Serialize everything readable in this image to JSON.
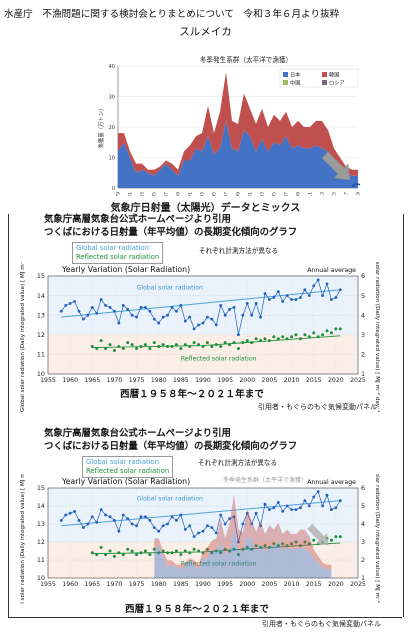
{
  "header": {
    "title": "水産庁　不漁問題に関する検討会とりまとめについて　令和３年６月より抜粋",
    "species": "スルメイカ"
  },
  "mix_title": "気象庁日射量（太陽光）データとミックス",
  "source_text": {
    "line1": "気象庁高層気象台公式ホームページより引用",
    "line2": "つくばにおける日射量（年平均値）の長期変化傾向のグラフ",
    "global_label": "Global solar radiation",
    "reflected_label": "Reflected solar radiation",
    "method_note": "それぞれ計測方法が異なる",
    "period": "西暦１９５８年〜２０２１年まで",
    "credit": "引用者・もぐらのもぐ気候変動パネル"
  },
  "chart_data": [
    {
      "type": "area",
      "title": "冬季発生系群（太平洋で漁獲）",
      "ylabel": "漁獲量（万トン）",
      "ylim": [
        0,
        40
      ],
      "yticks": [
        0,
        10,
        20,
        30,
        40
      ],
      "x": [
        1979,
        1980,
        1981,
        1982,
        1983,
        1984,
        1985,
        1986,
        1987,
        1988,
        1989,
        1990,
        1991,
        1992,
        1993,
        1994,
        1995,
        1996,
        1997,
        1998,
        1999,
        2000,
        2001,
        2002,
        2003,
        2004,
        2005,
        2006,
        2007,
        2008,
        2009,
        2010,
        2011,
        2012,
        2013,
        2014,
        2015,
        2016,
        2017,
        2018,
        2019
      ],
      "xtick_labels": [
        "1979",
        "1981",
        "1983",
        "1985",
        "1987",
        "1989",
        "1991",
        "1993",
        "1995",
        "1997",
        "1999",
        "2001",
        "2003",
        "2005",
        "2007",
        "2009",
        "2011",
        "2013",
        "2015",
        "2017",
        "2019"
      ],
      "series": [
        {
          "name": "日本",
          "color": "#4472c4",
          "values": [
            12,
            15,
            10,
            5,
            6,
            5,
            4,
            6,
            8,
            6,
            4,
            9,
            9,
            13,
            12,
            17,
            11,
            13,
            22,
            13,
            12,
            19,
            17,
            12,
            16,
            12,
            15,
            14,
            17,
            13,
            14,
            13,
            13,
            14,
            13,
            12,
            9,
            7,
            5,
            4,
            4
          ]
        },
        {
          "name": "韓国",
          "color": "#c0504d",
          "values": [
            6,
            3,
            2,
            3,
            2,
            1,
            2,
            1,
            1,
            2,
            2,
            3,
            5,
            4,
            6,
            10,
            7,
            12,
            16,
            9,
            9,
            12,
            9,
            9,
            10,
            8,
            9,
            8,
            8,
            7,
            8,
            7,
            7,
            8,
            9,
            7,
            4,
            3,
            2,
            2,
            2
          ]
        },
        {
          "name": "中国",
          "color": "#9bbb59",
          "values": [
            0,
            0,
            0,
            0,
            0,
            0,
            0,
            0,
            0,
            0,
            0,
            0,
            0,
            0,
            0,
            0,
            0,
            0,
            0,
            0,
            0,
            0,
            0,
            0,
            0,
            0,
            0,
            0,
            0,
            0,
            0,
            0,
            0,
            0,
            0,
            0,
            0,
            0,
            0,
            0,
            0
          ]
        },
        {
          "name": "ロシア",
          "color": "#7f6084",
          "values": [
            0,
            0,
            0,
            0,
            0,
            0,
            0,
            0,
            0,
            0,
            0,
            0,
            0,
            0,
            0,
            0,
            0,
            0,
            0,
            0,
            0,
            0,
            0,
            0,
            0,
            0,
            0,
            0,
            0,
            0,
            0,
            0,
            0,
            0,
            0,
            0,
            0,
            0,
            0,
            0,
            0
          ]
        }
      ]
    },
    {
      "type": "scatter",
      "title": "Yearly Variation (Solar Radiation)",
      "annotation": "Annual average",
      "xlabel": "",
      "ylabel_left": "Global solar radiation (Daily integrated value) [ MJ m⁻² day⁻¹ ]",
      "ylabel_right": "Reflected solar radiation (Daily integrated value) [ MJ m⁻² day⁻¹ ]",
      "xlim": [
        1955,
        2025
      ],
      "xticks": [
        1955,
        1960,
        1965,
        1970,
        1975,
        1980,
        1985,
        1990,
        1995,
        2000,
        2005,
        2010,
        2015,
        2020,
        2025
      ],
      "ylim_left": [
        10,
        15
      ],
      "yticks_left": [
        10,
        11,
        12,
        13,
        14,
        15
      ],
      "ylim_right": [
        1,
        6
      ],
      "yticks_right": [
        1,
        2,
        3,
        4,
        5,
        6
      ],
      "series": [
        {
          "name": "Global solar radiation",
          "axis": "left",
          "color": "#1f5fc0",
          "x": [
            1958,
            1959,
            1960,
            1961,
            1962,
            1963,
            1964,
            1965,
            1966,
            1967,
            1968,
            1969,
            1970,
            1971,
            1972,
            1973,
            1974,
            1975,
            1976,
            1977,
            1978,
            1979,
            1980,
            1981,
            1982,
            1983,
            1984,
            1985,
            1986,
            1987,
            1988,
            1989,
            1990,
            1991,
            1992,
            1993,
            1994,
            1995,
            1996,
            1997,
            1998,
            1999,
            2000,
            2001,
            2002,
            2003,
            2004,
            2005,
            2006,
            2007,
            2008,
            2009,
            2010,
            2011,
            2012,
            2013,
            2014,
            2015,
            2016,
            2017,
            2018,
            2019,
            2020,
            2021
          ],
          "y": [
            13.2,
            13.5,
            13.6,
            13.7,
            13.2,
            12.8,
            13.0,
            13.4,
            13.1,
            13.8,
            13.5,
            13.4,
            13.2,
            12.6,
            13.5,
            13.3,
            13.0,
            12.9,
            13.4,
            13.4,
            13.2,
            12.8,
            12.6,
            12.9,
            13.0,
            13.4,
            13.2,
            13.5,
            12.7,
            12.9,
            12.3,
            12.5,
            12.6,
            12.9,
            12.8,
            12.5,
            13.5,
            13.0,
            13.3,
            13.4,
            12.0,
            13.0,
            13.6,
            13.0,
            13.6,
            12.9,
            14.1,
            13.8,
            13.9,
            14.2,
            13.7,
            14.0,
            13.8,
            13.8,
            13.9,
            14.3,
            14.0,
            14.5,
            14.8,
            14.0,
            14.6,
            13.8,
            13.9,
            14.3
          ]
        },
        {
          "name": "Global solar radiation trend",
          "axis": "left",
          "color": "#4aa3d8",
          "x": [
            1958,
            2021
          ],
          "y": [
            12.9,
            14.3
          ]
        },
        {
          "name": "Reflected solar radiation",
          "axis": "right",
          "color": "#1d8f3a",
          "x": [
            1965,
            1966,
            1967,
            1968,
            1969,
            1970,
            1971,
            1972,
            1973,
            1974,
            1975,
            1976,
            1977,
            1978,
            1979,
            1980,
            1981,
            1982,
            1983,
            1984,
            1985,
            1986,
            1987,
            1988,
            1989,
            1990,
            1991,
            1992,
            1993,
            1994,
            1995,
            1996,
            1997,
            1998,
            1999,
            2000,
            2001,
            2002,
            2003,
            2004,
            2005,
            2006,
            2007,
            2008,
            2009,
            2010,
            2011,
            2012,
            2013,
            2014,
            2015,
            2016,
            2017,
            2018,
            2019,
            2020,
            2021
          ],
          "y": [
            2.4,
            2.3,
            2.7,
            2.3,
            2.5,
            2.2,
            2.4,
            2.3,
            2.6,
            2.5,
            2.3,
            2.4,
            2.5,
            2.3,
            2.6,
            2.4,
            2.5,
            2.4,
            2.4,
            2.5,
            2.3,
            2.5,
            2.4,
            2.6,
            2.5,
            2.4,
            2.6,
            2.4,
            2.5,
            2.4,
            2.6,
            2.5,
            2.6,
            2.3,
            2.6,
            2.7,
            2.6,
            2.8,
            2.7,
            2.8,
            2.7,
            2.9,
            2.8,
            2.9,
            2.8,
            2.9,
            3.0,
            2.8,
            3.0,
            2.9,
            3.1,
            2.9,
            3.0,
            3.2,
            3.1,
            3.3,
            3.3
          ]
        },
        {
          "name": "Reflected solar radiation trend",
          "axis": "right",
          "color": "#1d8f3a",
          "x": [
            1965,
            1990,
            2021
          ],
          "y": [
            2.35,
            2.45,
            2.95
          ]
        }
      ]
    }
  ],
  "overlay": {
    "fish_chart_title_ghost": "冬季発生系群（太平洋で漁獲）"
  }
}
